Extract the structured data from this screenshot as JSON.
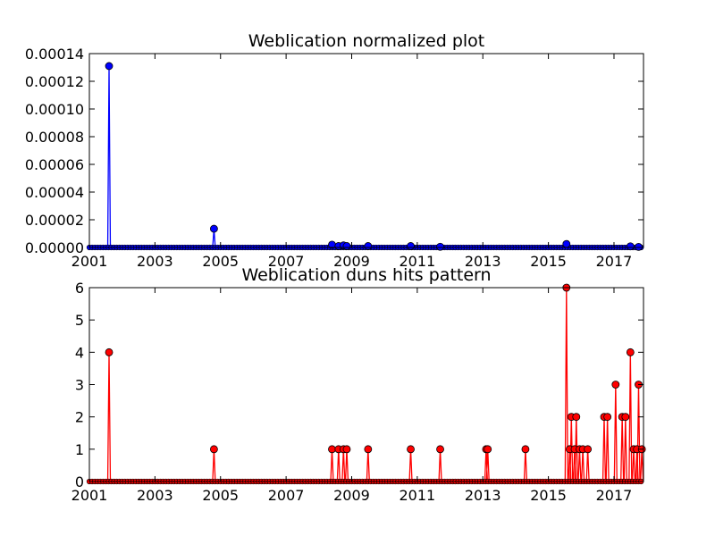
{
  "chart_data": [
    {
      "type": "line",
      "title": "Weblication normalized plot",
      "xlabel": "",
      "ylabel": "",
      "xlim": [
        2001.0,
        2017.9
      ],
      "ylim": [
        0,
        0.00014
      ],
      "grid": false,
      "legend": "none",
      "color": "#0000ff",
      "x_ticks": [
        2001,
        2003,
        2005,
        2007,
        2009,
        2011,
        2013,
        2015,
        2017
      ],
      "x_tick_labels": [
        "2001",
        "2003",
        "2005",
        "2007",
        "2009",
        "2011",
        "2013",
        "2015",
        "2017"
      ],
      "y_ticks": [
        0,
        2e-05,
        4e-05,
        6e-05,
        8e-05,
        0.0001,
        0.00012,
        0.00014
      ],
      "y_tick_labels": [
        "0.00000",
        "0.00002",
        "0.00004",
        "0.00006",
        "0.00008",
        "0.00010",
        "0.00012",
        "0.00014"
      ],
      "points": [
        {
          "x": 2001.6,
          "y": 0.000131
        },
        {
          "x": 2004.8,
          "y": 1.35e-05
        },
        {
          "x": 2008.4,
          "y": 2e-06
        },
        {
          "x": 2008.6,
          "y": 1e-06
        },
        {
          "x": 2008.75,
          "y": 1.5e-06
        },
        {
          "x": 2008.85,
          "y": 1e-06
        },
        {
          "x": 2009.5,
          "y": 1e-06
        },
        {
          "x": 2010.8,
          "y": 1e-06
        },
        {
          "x": 2011.7,
          "y": 5e-07
        },
        {
          "x": 2015.55,
          "y": 2.5e-06
        },
        {
          "x": 2017.5,
          "y": 8e-07
        },
        {
          "x": 2017.75,
          "y": 4e-07
        }
      ]
    },
    {
      "type": "line",
      "title": "Weblication duns hits pattern",
      "xlabel": "",
      "ylabel": "",
      "xlim": [
        2001.0,
        2017.9
      ],
      "ylim": [
        0,
        6
      ],
      "grid": false,
      "legend": "none",
      "color": "#ff0000",
      "x_ticks": [
        2001,
        2003,
        2005,
        2007,
        2009,
        2011,
        2013,
        2015,
        2017
      ],
      "x_tick_labels": [
        "2001",
        "2003",
        "2005",
        "2007",
        "2009",
        "2011",
        "2013",
        "2015",
        "2017"
      ],
      "y_ticks": [
        0,
        1,
        2,
        3,
        4,
        5,
        6
      ],
      "y_tick_labels": [
        "0",
        "1",
        "2",
        "3",
        "4",
        "5",
        "6"
      ],
      "points": [
        {
          "x": 2001.6,
          "y": 4
        },
        {
          "x": 2004.8,
          "y": 1
        },
        {
          "x": 2008.4,
          "y": 1
        },
        {
          "x": 2008.6,
          "y": 1
        },
        {
          "x": 2008.75,
          "y": 1
        },
        {
          "x": 2008.85,
          "y": 1
        },
        {
          "x": 2009.5,
          "y": 1
        },
        {
          "x": 2010.8,
          "y": 1
        },
        {
          "x": 2011.7,
          "y": 1
        },
        {
          "x": 2013.1,
          "y": 1
        },
        {
          "x": 2013.15,
          "y": 1
        },
        {
          "x": 2014.3,
          "y": 1
        },
        {
          "x": 2015.55,
          "y": 6
        },
        {
          "x": 2015.65,
          "y": 1
        },
        {
          "x": 2015.7,
          "y": 2
        },
        {
          "x": 2015.8,
          "y": 1
        },
        {
          "x": 2015.85,
          "y": 2
        },
        {
          "x": 2015.95,
          "y": 1
        },
        {
          "x": 2016.05,
          "y": 1
        },
        {
          "x": 2016.2,
          "y": 1
        },
        {
          "x": 2016.7,
          "y": 2
        },
        {
          "x": 2016.8,
          "y": 2
        },
        {
          "x": 2017.05,
          "y": 3
        },
        {
          "x": 2017.25,
          "y": 2
        },
        {
          "x": 2017.35,
          "y": 2
        },
        {
          "x": 2017.5,
          "y": 4
        },
        {
          "x": 2017.6,
          "y": 1
        },
        {
          "x": 2017.7,
          "y": 1
        },
        {
          "x": 2017.75,
          "y": 3
        },
        {
          "x": 2017.85,
          "y": 1
        }
      ]
    }
  ]
}
